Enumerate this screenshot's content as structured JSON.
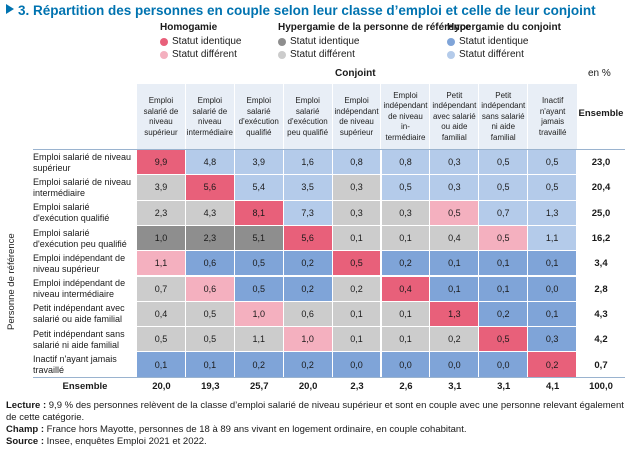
{
  "title": "3. Répartition des personnes en couple selon leur classe d’emploi et celle de leur conjoint",
  "legend": [
    {
      "heading": "Homogamie",
      "items": [
        {
          "label": "Statut identique",
          "color": "#e8607a"
        },
        {
          "label": "Statut différent",
          "color": "#f4b0bf"
        }
      ]
    },
    {
      "heading": "Hypergamie de la personne de référence",
      "items": [
        {
          "label": "Statut identique",
          "color": "#8e8e8e"
        },
        {
          "label": "Statut différent",
          "color": "#cccccc"
        }
      ]
    },
    {
      "heading": "Hypergamie du conjoint",
      "items": [
        {
          "label": "Statut identique",
          "color": "#7fa4d8"
        },
        {
          "label": "Statut différent",
          "color": "#b4cbea"
        }
      ]
    }
  ],
  "axis": {
    "conjoint": "Conjoint",
    "unit": "en %",
    "personne": "Personne de référence",
    "ensemble": "Ensemble"
  },
  "chart_data": {
    "type": "heatmap",
    "title": "3. Répartition des personnes en couple selon leur classe d’emploi et celle de leur conjoint",
    "columns": [
      "Emploi salarié de niveau supérieur",
      "Emploi salarié de niveau intermédiaire",
      "Emploi salarié d'exécution qualifié",
      "Emploi salarié d'exécution peu qualifié",
      "Emploi indépendant de niveau supérieur",
      "Emploi indépendant de niveau in-termédiaire",
      "Petit indépendant avec salarié ou aide familial",
      "Petit indépendant sans salarié ni aide familial",
      "Inactif n'ayant jamais travaillé"
    ],
    "rows": [
      "Emploi salarié de niveau supérieur",
      "Emploi salarié de niveau intermédiaire",
      "Emploi salarié d'exécution qualifié",
      "Emploi salarié d'exécution peu qualifié",
      "Emploi indépendant de niveau supérieur",
      "Emploi indépendant de niveau intermédiaire",
      "Petit indépendant avec salarié ou aide familial",
      "Petit indépendant sans salarié ni aide familial",
      "Inactif n'ayant jamais travaillé"
    ],
    "values": [
      [
        "9,9",
        "4,8",
        "3,9",
        "1,6",
        "0,8",
        "0,8",
        "0,3",
        "0,5",
        "0,5"
      ],
      [
        "3,9",
        "5,6",
        "5,4",
        "3,5",
        "0,3",
        "0,5",
        "0,3",
        "0,5",
        "0,5"
      ],
      [
        "2,3",
        "4,3",
        "8,1",
        "7,3",
        "0,3",
        "0,3",
        "0,5",
        "0,7",
        "1,3"
      ],
      [
        "1,0",
        "2,3",
        "5,1",
        "5,6",
        "0,1",
        "0,1",
        "0,4",
        "0,5",
        "1,1"
      ],
      [
        "1,1",
        "0,6",
        "0,5",
        "0,2",
        "0,5",
        "0,2",
        "0,1",
        "0,1",
        "0,1"
      ],
      [
        "0,7",
        "0,6",
        "0,5",
        "0,2",
        "0,2",
        "0,4",
        "0,1",
        "0,1",
        "0,0"
      ],
      [
        "0,4",
        "0,5",
        "1,0",
        "0,6",
        "0,1",
        "0,1",
        "1,3",
        "0,2",
        "0,1"
      ],
      [
        "0,5",
        "0,5",
        "1,1",
        "1,0",
        "0,1",
        "0,1",
        "0,2",
        "0,5",
        "0,3"
      ],
      [
        "0,1",
        "0,1",
        "0,2",
        "0,2",
        "0,0",
        "0,0",
        "0,0",
        "0,0",
        "0,2"
      ]
    ],
    "categories": [
      [
        "hi",
        "cd",
        "cd",
        "cd",
        "cd",
        "cd",
        "cd",
        "cd",
        "cd"
      ],
      [
        "rd",
        "hi",
        "cd",
        "cd",
        "rd",
        "cd",
        "cd",
        "cd",
        "cd"
      ],
      [
        "rd",
        "rd",
        "hi",
        "cd",
        "rd",
        "rd",
        "hd",
        "cd",
        "cd"
      ],
      [
        "ri",
        "ri",
        "ri",
        "hi",
        "rd",
        "rd",
        "rd",
        "hd",
        "cd"
      ],
      [
        "hd",
        "ci",
        "ci",
        "ci",
        "hi",
        "ci",
        "ci",
        "ci",
        "ci"
      ],
      [
        "rd",
        "hd",
        "ci",
        "ci",
        "rd",
        "hi",
        "ci",
        "ci",
        "ci"
      ],
      [
        "rd",
        "rd",
        "hd",
        "rd",
        "rd",
        "rd",
        "hi",
        "ci",
        "ci"
      ],
      [
        "rd",
        "rd",
        "rd",
        "hd",
        "rd",
        "rd",
        "rd",
        "hi",
        "ci"
      ],
      [
        "ci",
        "ci",
        "ci",
        "ci",
        "ci",
        "ci",
        "ci",
        "ci",
        "hi"
      ]
    ],
    "category_colors": {
      "hi": "#e8607a",
      "hd": "#f4b0bf",
      "ri": "#8e8e8e",
      "rd": "#cccccc",
      "ci": "#7fa4d8",
      "cd": "#b4cbea"
    },
    "row_totals": [
      "23,0",
      "20,4",
      "25,0",
      "16,2",
      "3,4",
      "2,8",
      "4,3",
      "4,2",
      "0,7"
    ],
    "column_totals": [
      "20,0",
      "19,3",
      "25,7",
      "20,0",
      "2,3",
      "2,6",
      "3,1",
      "3,1",
      "4,1"
    ],
    "grand_total": "100,0"
  },
  "notes": [
    {
      "label": "Lecture :",
      "text": "9,9 % des personnes relèvent de la classe d’emploi salarié de niveau supérieur et sont en couple avec une personne relevant également de cette catégorie."
    },
    {
      "label": "Champ :",
      "text": "France hors Mayotte, personnes de 18 à 89 ans vivant en logement ordinaire, en couple cohabitant."
    },
    {
      "label": "Source :",
      "text": "Insee, enquêtes Emploi 2021 et 2022."
    }
  ]
}
